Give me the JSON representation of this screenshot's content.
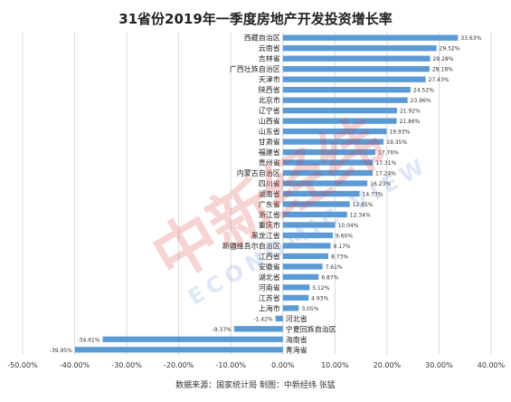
{
  "chart_data": {
    "type": "bar",
    "orientation": "horizontal",
    "title": "31省份2019年一季度房地产开发投资增长率",
    "source_note": "数据来源：国家统计局  制图：中新经纬  张猛",
    "xlim": [
      -0.5,
      0.4
    ],
    "x_ticks": [
      "-50.00%",
      "-40.00%",
      "-30.00%",
      "-20.00%",
      "-10.00%",
      "0.00%",
      "10.00%",
      "20.00%",
      "30.00%",
      "40.00%"
    ],
    "grid": true,
    "bar_color": "#5b9bd5",
    "categories": [
      "西藏自治区",
      "云南省",
      "吉林省",
      "广西壮族自治区",
      "天津市",
      "陕西省",
      "北京市",
      "辽宁省",
      "山西省",
      "山东省",
      "甘肃省",
      "福建省",
      "贵州省",
      "内蒙古自治区",
      "四川省",
      "湖南省",
      "广东省",
      "浙江省",
      "重庆市",
      "黑龙江省",
      "新疆维吾尔自治区",
      "江西省",
      "安徽省",
      "湖北省",
      "河南省",
      "江苏省",
      "上海市",
      "河北省",
      "宁夏回族自治区",
      "海南省",
      "青海省"
    ],
    "values": [
      0.3363,
      0.2952,
      0.2828,
      0.2818,
      0.2743,
      0.2452,
      0.2396,
      0.2192,
      0.2186,
      0.1993,
      0.1935,
      0.1776,
      0.1731,
      0.1724,
      0.1623,
      0.1473,
      0.1285,
      0.1234,
      0.1004,
      0.096,
      0.0917,
      0.0873,
      0.0761,
      0.0687,
      0.0512,
      0.0493,
      0.0305,
      -0.0142,
      -0.0937,
      -0.3461,
      -0.3995
    ],
    "data_labels": [
      "33.63%",
      "29.52%",
      "28.28%",
      "28.18%",
      "27.43%",
      "24.52%",
      "23.96%",
      "21.92%",
      "21.86%",
      "19.93%",
      "19.35%",
      "17.76%",
      "17.31%",
      "17.24%",
      "16.23%",
      "14.73%",
      "12.85%",
      "12.34%",
      "10.04%",
      "9.60%",
      "9.17%",
      "8.73%",
      "7.61%",
      "6.87%",
      "5.12%",
      "4.93%",
      "3.05%",
      "-1.42%",
      "-9.37%",
      "-34.61%",
      "-39.95%"
    ]
  },
  "watermark": {
    "text_cn": "中新经纬",
    "text_en": "ECONOMIC VIEW"
  }
}
